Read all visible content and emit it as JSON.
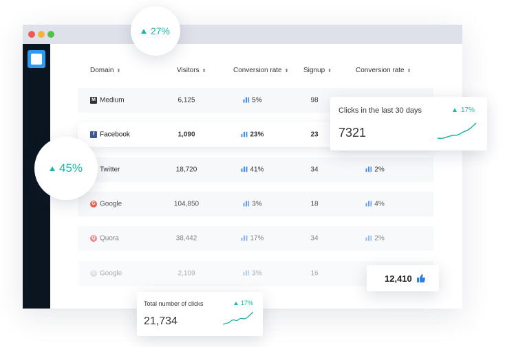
{
  "badges": [
    "27%",
    "45%"
  ],
  "table": {
    "columns": [
      "Domain",
      "Visitors",
      "Conversion rate",
      "Signup",
      "Conversion rate"
    ],
    "rows": [
      {
        "domain": "Medium",
        "visitors": "6,125",
        "conversion": "5%",
        "signup": "98"
      },
      {
        "domain": "Facebook",
        "visitors": "1,090",
        "conversion": "23%",
        "signup": "23"
      },
      {
        "domain": "Twitter",
        "visitors": "18,720",
        "conversion": "41%",
        "signup": "34",
        "conversion2": "2%"
      },
      {
        "domain": "Google",
        "visitors": "104,850",
        "conversion": "3%",
        "signup": "18",
        "conversion2": "4%"
      },
      {
        "domain": "Quora",
        "visitors": "38,442",
        "conversion": "17%",
        "signup": "34",
        "conversion2": "2%"
      },
      {
        "domain": "Google",
        "visitors": "2,109",
        "conversion": "3%",
        "signup": "16"
      }
    ]
  },
  "cards": {
    "clicks_30_days": {
      "title": "Clicks in the last 30 days",
      "change": "17%",
      "value": "7321"
    },
    "total_clicks": {
      "title": "Total number of clicks",
      "change": "17%",
      "value": "21,734"
    },
    "likes": {
      "value": "12,410"
    }
  }
}
